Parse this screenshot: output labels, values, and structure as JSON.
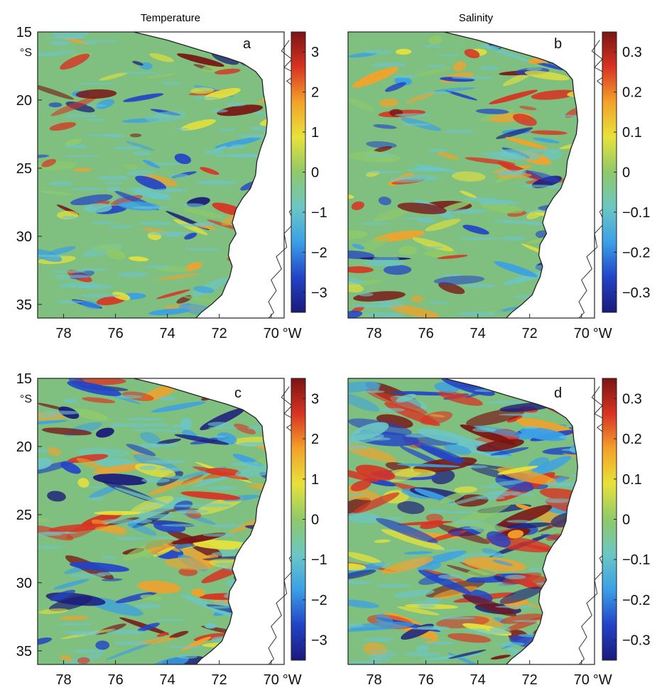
{
  "chart_data": [
    {
      "panel": "a",
      "column_title": "Temperature",
      "type": "heatmap",
      "x_ticks": [
        "78",
        "76",
        "74",
        "72",
        "70"
      ],
      "x_unit": "°W",
      "y_ticks": [
        "15",
        "20",
        "25",
        "30",
        "35"
      ],
      "y_unit": "°S",
      "xlim": [
        79,
        69.5
      ],
      "ylim": [
        15,
        36
      ],
      "colorbar": {
        "ticks": [
          "3",
          "2",
          "1",
          "0",
          "−1",
          "−2",
          "−3"
        ],
        "range": [
          -3.5,
          3.5
        ]
      },
      "intensity": 0.45
    },
    {
      "panel": "b",
      "column_title": "Salinity",
      "type": "heatmap",
      "x_ticks": [
        "78",
        "76",
        "74",
        "72",
        "70"
      ],
      "x_unit": "°W",
      "y_ticks": [],
      "xlim": [
        79,
        69.5
      ],
      "ylim": [
        15,
        36
      ],
      "colorbar": {
        "ticks": [
          "0.3",
          "0.2",
          "0.1",
          "0",
          "−0.1",
          "−0.2",
          "−0.3"
        ],
        "range": [
          -0.35,
          0.35
        ]
      },
      "intensity": 0.5
    },
    {
      "panel": "c",
      "type": "heatmap",
      "x_ticks": [
        "78",
        "76",
        "74",
        "72",
        "70"
      ],
      "x_unit": "°W",
      "y_ticks": [
        "15",
        "20",
        "25",
        "30",
        "35"
      ],
      "y_unit": "°S",
      "xlim": [
        79,
        69.5
      ],
      "ylim": [
        15,
        36
      ],
      "colorbar": {
        "ticks": [
          "3",
          "2",
          "1",
          "0",
          "−1",
          "−2",
          "−3"
        ],
        "range": [
          -3.5,
          3.5
        ]
      },
      "intensity": 0.75
    },
    {
      "panel": "d",
      "type": "heatmap",
      "x_ticks": [
        "78",
        "76",
        "74",
        "72",
        "70"
      ],
      "x_unit": "°W",
      "y_ticks": [],
      "xlim": [
        79,
        69.5
      ],
      "ylim": [
        15,
        36
      ],
      "colorbar": {
        "ticks": [
          "0.3",
          "0.2",
          "0.1",
          "0",
          "−0.1",
          "−0.2",
          "−0.3"
        ],
        "range": [
          -0.35,
          0.35
        ]
      },
      "intensity": 1.0
    }
  ],
  "colormap": [
    "#1a1a7a",
    "#2243c8",
    "#3aa0e6",
    "#6cc7c3",
    "#8fc96a",
    "#e7e23a",
    "#f3a22a",
    "#d83322",
    "#7a1414"
  ],
  "ocean_color": "#7fbf7f"
}
